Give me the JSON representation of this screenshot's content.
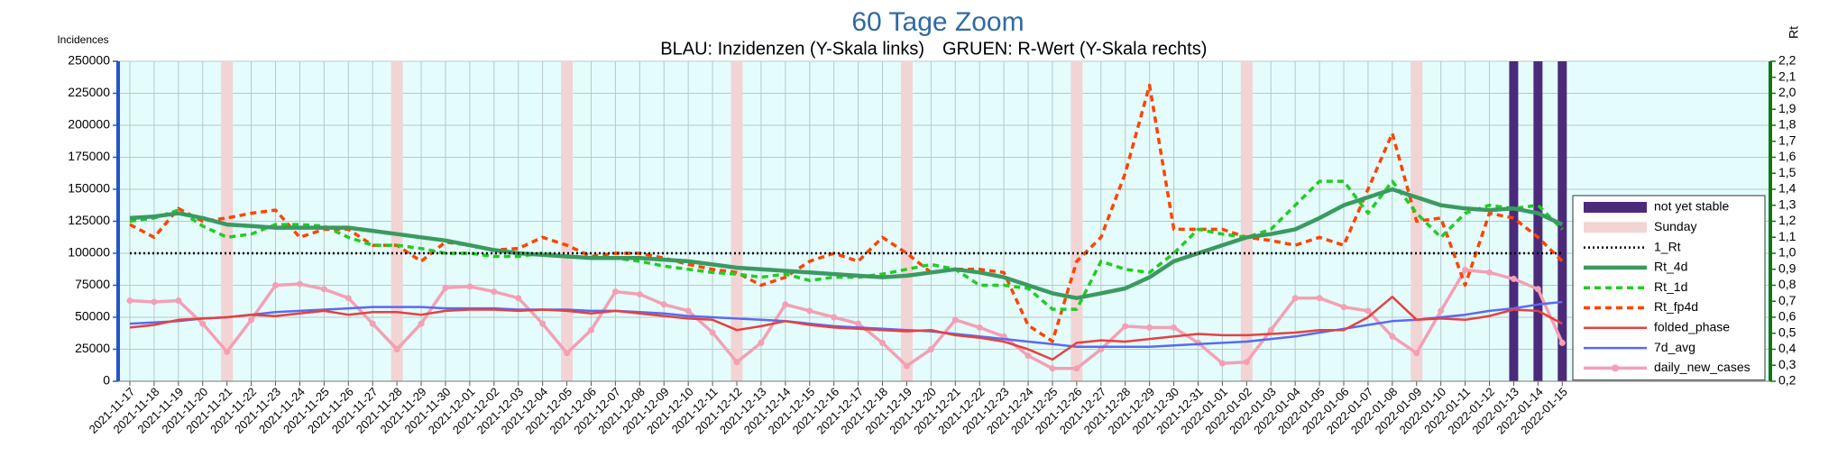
{
  "chart_data": {
    "type": "line",
    "title": "60 Tage Zoom",
    "subtitle_left": "BLAU: Inzidenzen (Y-Skala links)",
    "subtitle_right": "GRUEN: R-Wert (Y-Skala rechts)",
    "ylabel": "Incidences",
    "y2label": "Rt",
    "categories": [
      "2021-11-17",
      "2021-11-18",
      "2021-11-19",
      "2021-11-20",
      "2021-11-21",
      "2021-11-22",
      "2021-11-23",
      "2021-11-24",
      "2021-11-25",
      "2021-11-26",
      "2021-11-27",
      "2021-11-28",
      "2021-11-29",
      "2021-11-30",
      "2021-12-01",
      "2021-12-02",
      "2021-12-03",
      "2021-12-04",
      "2021-12-05",
      "2021-12-06",
      "2021-12-07",
      "2021-12-08",
      "2021-12-09",
      "2021-12-10",
      "2021-12-11",
      "2021-12-12",
      "2021-12-13",
      "2021-12-14",
      "2021-12-15",
      "2021-12-16",
      "2021-12-17",
      "2021-12-18",
      "2021-12-19",
      "2021-12-20",
      "2021-12-21",
      "2021-12-22",
      "2021-12-23",
      "2021-12-24",
      "2021-12-25",
      "2021-12-26",
      "2021-12-27",
      "2021-12-28",
      "2021-12-29",
      "2021-12-30",
      "2021-12-31",
      "2022-01-01",
      "2022-01-02",
      "2022-01-03",
      "2022-01-04",
      "2022-01-05",
      "2022-01-06",
      "2022-01-07",
      "2022-01-08",
      "2022-01-09",
      "2022-01-10",
      "2022-01-11",
      "2022-01-12",
      "2022-01-13",
      "2022-01-14",
      "2022-01-15"
    ],
    "ylim": [
      0,
      250000
    ],
    "yticks": [
      0,
      25000,
      50000,
      75000,
      100000,
      125000,
      150000,
      175000,
      200000,
      225000,
      250000
    ],
    "y2lim": [
      0.2,
      2.2
    ],
    "y2ticks": [
      {
        "value": 0.2,
        "label": "0,2"
      },
      {
        "value": 0.3,
        "label": "0,3"
      },
      {
        "value": 0.4,
        "label": "0,4"
      },
      {
        "value": 0.5,
        "label": "0,5"
      },
      {
        "value": 0.6,
        "label": "0,6"
      },
      {
        "value": 0.7,
        "label": "0,7"
      },
      {
        "value": 0.8,
        "label": "0,8"
      },
      {
        "value": 0.9,
        "label": "0,9"
      },
      {
        "value": 1.0,
        "label": "1,0"
      },
      {
        "value": 1.1,
        "label": "1,1"
      },
      {
        "value": 1.2,
        "label": "1,2"
      },
      {
        "value": 1.3,
        "label": "1,3"
      },
      {
        "value": 1.4,
        "label": "1,4"
      },
      {
        "value": 1.5,
        "label": "1,5"
      },
      {
        "value": 1.6,
        "label": "1,6"
      },
      {
        "value": 1.7,
        "label": "1,7"
      },
      {
        "value": 1.8,
        "label": "1,8"
      },
      {
        "value": 1.9,
        "label": "1,9"
      },
      {
        "value": 2.0,
        "label": "2,0"
      },
      {
        "value": 2.1,
        "label": "2,1"
      },
      {
        "value": 2.2,
        "label": "2,2"
      }
    ],
    "grid": true,
    "legend": "right",
    "series": [
      {
        "name": "not yet stable",
        "type": "bar",
        "color": "#4b2a7a",
        "values": [
          null,
          null,
          null,
          null,
          null,
          null,
          null,
          null,
          null,
          null,
          null,
          null,
          null,
          null,
          null,
          null,
          null,
          null,
          null,
          null,
          null,
          null,
          null,
          null,
          null,
          null,
          null,
          null,
          null,
          null,
          null,
          null,
          null,
          null,
          null,
          null,
          null,
          null,
          null,
          null,
          null,
          null,
          null,
          null,
          null,
          null,
          null,
          null,
          null,
          null,
          null,
          null,
          null,
          null,
          null,
          null,
          null,
          250000,
          250000,
          250000
        ]
      },
      {
        "name": "Sunday",
        "type": "bar",
        "color": "#f2d4d4",
        "values": [
          null,
          null,
          null,
          null,
          250000,
          null,
          null,
          null,
          null,
          null,
          null,
          250000,
          null,
          null,
          null,
          null,
          null,
          null,
          250000,
          null,
          null,
          null,
          null,
          null,
          null,
          250000,
          null,
          null,
          null,
          null,
          null,
          null,
          250000,
          null,
          null,
          null,
          null,
          null,
          null,
          250000,
          null,
          null,
          null,
          null,
          null,
          null,
          250000,
          null,
          null,
          null,
          null,
          null,
          null,
          250000,
          null,
          null,
          null,
          null,
          null,
          null
        ]
      },
      {
        "name": "1_Rt",
        "axis": "y2",
        "color": "#000000",
        "style": "dotted",
        "values": [
          1,
          1,
          1,
          1,
          1,
          1,
          1,
          1,
          1,
          1,
          1,
          1,
          1,
          1,
          1,
          1,
          1,
          1,
          1,
          1,
          1,
          1,
          1,
          1,
          1,
          1,
          1,
          1,
          1,
          1,
          1,
          1,
          1,
          1,
          1,
          1,
          1,
          1,
          1,
          1,
          1,
          1,
          1,
          1,
          1,
          1,
          1,
          1,
          1,
          1,
          1,
          1,
          1,
          1,
          1,
          1,
          1,
          1,
          1,
          1
        ]
      },
      {
        "name": "Rt_4d",
        "axis": "y2",
        "color": "#3a9a60",
        "style": "solid",
        "values": [
          1.22,
          1.23,
          1.25,
          1.22,
          1.18,
          1.17,
          1.16,
          1.16,
          1.16,
          1.16,
          1.14,
          1.12,
          1.1,
          1.08,
          1.05,
          1.02,
          1.0,
          0.99,
          0.98,
          0.97,
          0.97,
          0.97,
          0.96,
          0.95,
          0.93,
          0.91,
          0.9,
          0.89,
          0.88,
          0.87,
          0.86,
          0.85,
          0.86,
          0.88,
          0.9,
          0.88,
          0.85,
          0.8,
          0.75,
          0.72,
          0.75,
          0.78,
          0.85,
          0.95,
          1.0,
          1.05,
          1.1,
          1.12,
          1.15,
          1.22,
          1.3,
          1.35,
          1.4,
          1.35,
          1.3,
          1.28,
          1.27,
          1.28,
          1.25,
          1.18
        ]
      },
      {
        "name": "Rt_1d",
        "axis": "y2",
        "color": "#22cc22",
        "style": "dashed",
        "values": [
          1.2,
          1.22,
          1.27,
          1.17,
          1.1,
          1.12,
          1.18,
          1.18,
          1.17,
          1.1,
          1.05,
          1.05,
          1.03,
          1.0,
          1.0,
          0.98,
          0.98,
          1.0,
          0.98,
          0.97,
          0.97,
          0.95,
          0.92,
          0.9,
          0.88,
          0.87,
          0.85,
          0.87,
          0.83,
          0.85,
          0.85,
          0.87,
          0.9,
          0.93,
          0.9,
          0.8,
          0.8,
          0.78,
          0.65,
          0.65,
          0.95,
          0.9,
          0.88,
          1.0,
          1.15,
          1.12,
          1.1,
          1.15,
          1.3,
          1.45,
          1.45,
          1.25,
          1.45,
          1.25,
          1.1,
          1.25,
          1.3,
          1.28,
          1.3,
          1.15
        ]
      },
      {
        "name": "Rt_fp4d",
        "axis": "y2",
        "color": "#ff4400",
        "style": "dashed",
        "values": [
          1.18,
          1.1,
          1.28,
          1.2,
          1.22,
          1.25,
          1.27,
          1.1,
          1.15,
          1.15,
          1.05,
          1.05,
          0.95,
          1.07,
          1.05,
          1.02,
          1.03,
          1.1,
          1.05,
          0.98,
          1.0,
          1.0,
          0.97,
          0.93,
          0.9,
          0.88,
          0.8,
          0.85,
          0.95,
          1.0,
          0.95,
          1.1,
          1.0,
          0.88,
          0.9,
          0.9,
          0.88,
          0.55,
          0.45,
          0.95,
          1.1,
          1.5,
          2.05,
          1.15,
          1.15,
          1.15,
          1.1,
          1.08,
          1.05,
          1.1,
          1.05,
          1.4,
          1.75,
          1.2,
          1.22,
          0.8,
          1.25,
          1.22,
          1.1,
          0.95
        ]
      },
      {
        "name": "folded_phase",
        "color": "#e84040",
        "style": "solid",
        "values": [
          42000,
          44000,
          48000,
          49000,
          50000,
          52000,
          51000,
          53000,
          55000,
          52000,
          54000,
          54000,
          52000,
          55000,
          56000,
          56000,
          55000,
          56000,
          55000,
          53000,
          55000,
          53000,
          51000,
          49000,
          48000,
          40000,
          43000,
          47000,
          44000,
          42000,
          41000,
          40000,
          39000,
          40000,
          36000,
          34000,
          31000,
          25000,
          17000,
          30000,
          32000,
          31000,
          33000,
          35000,
          37000,
          36000,
          36000,
          37000,
          38000,
          40000,
          40000,
          50000,
          66000,
          48000,
          49000,
          48000,
          51000,
          56000,
          55000,
          45000
        ]
      },
      {
        "name": "7d_avg",
        "color": "#5a6af0",
        "style": "solid",
        "values": [
          45000,
          46000,
          47000,
          49000,
          50000,
          52000,
          54000,
          55000,
          56000,
          57000,
          58000,
          58000,
          58000,
          57000,
          57000,
          57000,
          56000,
          56000,
          56000,
          55000,
          55000,
          54000,
          53000,
          51000,
          50000,
          49000,
          48000,
          47000,
          45000,
          43000,
          42000,
          41000,
          40000,
          39000,
          37000,
          35000,
          33000,
          31000,
          29000,
          27000,
          27000,
          27000,
          27000,
          28000,
          29000,
          30000,
          31000,
          33000,
          35000,
          38000,
          41000,
          44000,
          47000,
          48000,
          50000,
          52000,
          55000,
          57000,
          60000,
          62000
        ]
      },
      {
        "name": "daily_new_cases",
        "color": "#f4a0b4",
        "style": "solid",
        "marker": true,
        "values": [
          63000,
          62000,
          63000,
          45000,
          23000,
          48000,
          75000,
          76000,
          72000,
          65000,
          45000,
          25000,
          45000,
          73000,
          74000,
          70000,
          65000,
          45000,
          22000,
          40000,
          70000,
          68000,
          60000,
          55000,
          38000,
          15000,
          30000,
          60000,
          55000,
          50000,
          45000,
          30000,
          12000,
          25000,
          48000,
          42000,
          35000,
          20000,
          10000,
          10000,
          25000,
          43000,
          42000,
          42000,
          30000,
          14000,
          15000,
          40000,
          65000,
          65000,
          58000,
          55000,
          35000,
          22000,
          55000,
          87000,
          85000,
          80000,
          72000,
          30000
        ]
      }
    ]
  }
}
